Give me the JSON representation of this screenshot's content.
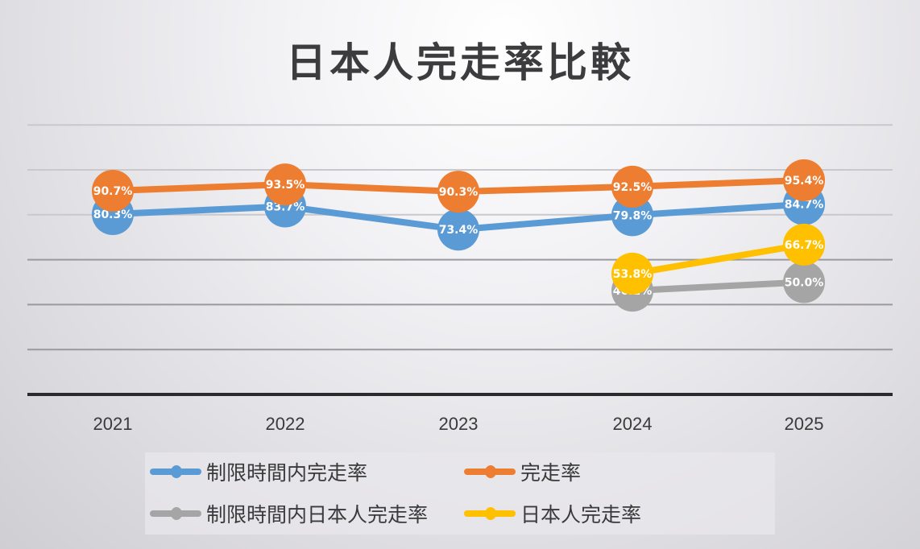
{
  "title": "日本人完走率比較",
  "chart_data": {
    "type": "line",
    "title": "日本人完走率比較",
    "xlabel": "",
    "ylabel": "",
    "categories": [
      "2021",
      "2022",
      "2023",
      "2024",
      "2025"
    ],
    "ylim": [
      0,
      120
    ],
    "y_gridlines": [
      0,
      20,
      40,
      60,
      80,
      100,
      120
    ],
    "y_tick_labels_visible": false,
    "grid": true,
    "legend_position": "bottom",
    "series": [
      {
        "name": "制限時間内完走率",
        "color": "#5b9bd5",
        "values": [
          80.3,
          83.7,
          73.4,
          79.8,
          84.7
        ],
        "labels": [
          "80.3%",
          "83.7%",
          "73.4%",
          "79.8%",
          "84.7%"
        ]
      },
      {
        "name": "完走率",
        "color": "#ed7d31",
        "values": [
          90.7,
          93.5,
          90.3,
          92.5,
          95.4
        ],
        "labels": [
          "90.7%",
          "93.5%",
          "90.3%",
          "92.5%",
          "95.4%"
        ]
      },
      {
        "name": "制限時間内日本人完走率",
        "color": "#a5a5a5",
        "values": [
          null,
          null,
          null,
          46.2,
          50.0
        ],
        "labels": [
          "",
          "",
          "",
          "46.2%",
          "50.0%"
        ]
      },
      {
        "name": "日本人完走率",
        "color": "#ffc000",
        "values": [
          null,
          null,
          null,
          53.8,
          66.7
        ],
        "labels": [
          "",
          "",
          "",
          "53.8%",
          "66.7%"
        ]
      }
    ]
  },
  "legend": {
    "items": [
      {
        "label": "制限時間内完走率",
        "color": "#5b9bd5"
      },
      {
        "label": "完走率",
        "color": "#ed7d31"
      },
      {
        "label": "制限時間内日本人完走率",
        "color": "#a5a5a5"
      },
      {
        "label": "日本人完走率",
        "color": "#ffc000"
      }
    ]
  }
}
